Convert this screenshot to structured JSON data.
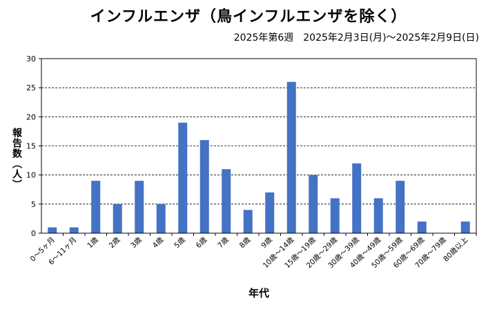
{
  "chart_data": {
    "type": "bar",
    "title": "インフルエンザ（鳥インフルエンザを除く）",
    "subtitle": "2025年第6週　2025年2月3日(月)～2025年2月9日(日)",
    "xlabel": "年代",
    "ylabel": "報告数（人）",
    "ylim": [
      0,
      30
    ],
    "yticks": [
      0,
      5,
      10,
      15,
      20,
      25,
      30
    ],
    "grid": true,
    "categories": [
      "0～5ヶ月",
      "6～11ヶ月",
      "1歳",
      "2歳",
      "3歳",
      "4歳",
      "5歳",
      "6歳",
      "7歳",
      "8歳",
      "9歳",
      "10歳～14歳",
      "15歳～19歳",
      "20歳～29歳",
      "30歳～39歳",
      "40歳～49歳",
      "50歳～59歳",
      "60歳～69歳",
      "70歳～79歳",
      "80歳以上"
    ],
    "values": [
      1,
      1,
      9,
      5,
      9,
      5,
      19,
      16,
      11,
      4,
      7,
      26,
      10,
      6,
      12,
      6,
      9,
      2,
      0,
      2
    ],
    "bar_color": "#4472c4"
  }
}
